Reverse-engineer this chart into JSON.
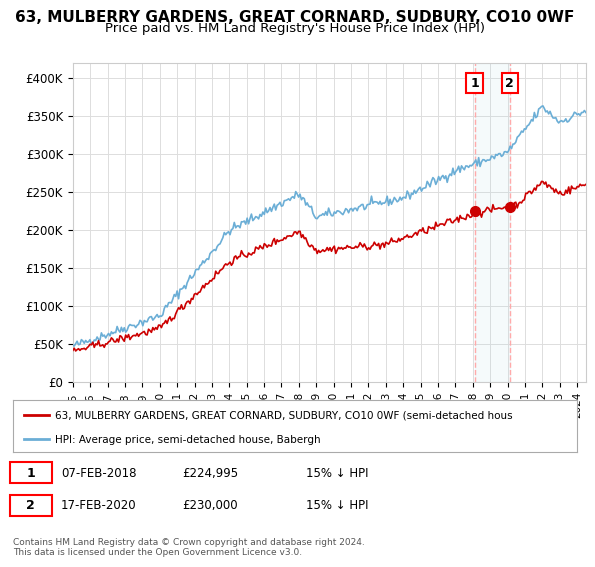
{
  "title": "63, MULBERRY GARDENS, GREAT CORNARD, SUDBURY, CO10 0WF",
  "subtitle": "Price paid vs. HM Land Registry's House Price Index (HPI)",
  "ylabel_ticks": [
    "£0",
    "£50K",
    "£100K",
    "£150K",
    "£200K",
    "£250K",
    "£300K",
    "£350K",
    "£400K"
  ],
  "ytick_values": [
    0,
    50000,
    100000,
    150000,
    200000,
    250000,
    300000,
    350000,
    400000
  ],
  "ylim": [
    0,
    420000
  ],
  "xlim_start": 1995.0,
  "xlim_end": 2024.5,
  "hpi_color": "#6baed6",
  "price_color": "#cc0000",
  "dashed_color": "#ffaaaa",
  "background_color": "#ffffff",
  "grid_color": "#dddddd",
  "sale1_date": 2018.1,
  "sale1_price": 224995,
  "sale2_date": 2020.12,
  "sale2_price": 230000,
  "legend_line1": "63, MULBERRY GARDENS, GREAT CORNARD, SUDBURY, CO10 0WF (semi-detached hous",
  "legend_line2": "HPI: Average price, semi-detached house, Babergh",
  "table_row1": [
    "1",
    "07-FEB-2018",
    "£224,995",
    "15% ↓ HPI"
  ],
  "table_row2": [
    "2",
    "17-FEB-2020",
    "£230,000",
    "15% ↓ HPI"
  ],
  "footer": "Contains HM Land Registry data © Crown copyright and database right 2024.\nThis data is licensed under the Open Government Licence v3.0.",
  "title_fontsize": 11,
  "subtitle_fontsize": 9.5
}
